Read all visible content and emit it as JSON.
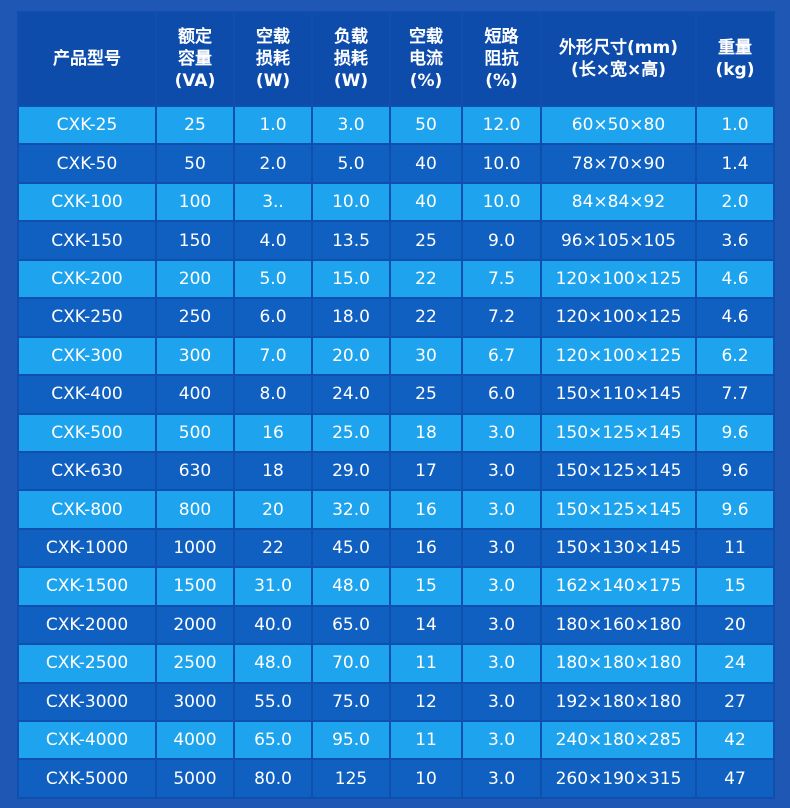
{
  "header": {
    "model": [
      "产品型号"
    ],
    "rated_capacity": [
      "额定",
      "容量",
      "(VA)"
    ],
    "no_load_loss": [
      "空载",
      "损耗",
      "(W)"
    ],
    "load_loss": [
      "负载",
      "损耗",
      "(W)"
    ],
    "no_load_current": [
      "空载",
      "电流",
      "(%)"
    ],
    "short_circuit_impedance": [
      "短路",
      "阻抗",
      "(%)"
    ],
    "dimensions": [
      "外形尺寸(mm)",
      "(长×宽×高)"
    ],
    "weight": [
      "重量",
      "(kg)"
    ]
  },
  "rows": [
    [
      "CXK-25",
      "25",
      "1.0",
      "3.0",
      "50",
      "12.0",
      "60×50×80",
      "1.0"
    ],
    [
      "CXK-50",
      "50",
      "2.0",
      "5.0",
      "40",
      "10.0",
      "78×70×90",
      "1.4"
    ],
    [
      "CXK-100",
      "100",
      "3..",
      "10.0",
      "40",
      "10.0",
      "84×84×92",
      "2.0"
    ],
    [
      "CXK-150",
      "150",
      "4.0",
      "13.5",
      "25",
      "9.0",
      "96×105×105",
      "3.6"
    ],
    [
      "CXK-200",
      "200",
      "5.0",
      "15.0",
      "22",
      "7.5",
      "120×100×125",
      "4.6"
    ],
    [
      "CXK-250",
      "250",
      "6.0",
      "18.0",
      "22",
      "7.2",
      "120×100×125",
      "4.6"
    ],
    [
      "CXK-300",
      "300",
      "7.0",
      "20.0",
      "30",
      "6.7",
      "120×100×125",
      "6.2"
    ],
    [
      "CXK-400",
      "400",
      "8.0",
      "24.0",
      "25",
      "6.0",
      "150×110×145",
      "7.7"
    ],
    [
      "CXK-500",
      "500",
      "16",
      "25.0",
      "18",
      "3.0",
      "150×125×145",
      "9.6"
    ],
    [
      "CXK-630",
      "630",
      "18",
      "29.0",
      "17",
      "3.0",
      "150×125×145",
      "9.6"
    ],
    [
      "CXK-800",
      "800",
      "20",
      "32.0",
      "16",
      "3.0",
      "150×125×145",
      "9.6"
    ],
    [
      "CXK-1000",
      "1000",
      "22",
      "45.0",
      "16",
      "3.0",
      "150×130×145",
      "11"
    ],
    [
      "CXK-1500",
      "1500",
      "31.0",
      "48.0",
      "15",
      "3.0",
      "162×140×175",
      "15"
    ],
    [
      "CXK-2000",
      "2000",
      "40.0",
      "65.0",
      "14",
      "3.0",
      "180×160×180",
      "20"
    ],
    [
      "CXK-2500",
      "2500",
      "48.0",
      "70.0",
      "11",
      "3.0",
      "180×180×180",
      "24"
    ],
    [
      "CXK-3000",
      "3000",
      "55.0",
      "75.0",
      "12",
      "3.0",
      "192×180×180",
      "27"
    ],
    [
      "CXK-4000",
      "4000",
      "65.0",
      "95.0",
      "11",
      "3.0",
      "240×180×285",
      "42"
    ],
    [
      "CXK-5000",
      "5000",
      "80.0",
      "125",
      "10",
      "3.0",
      "260×190×315",
      "47"
    ]
  ],
  "colors": {
    "page_background": "#1e57b4",
    "header_background": "#0d4cab",
    "row_light": "#1ea4ee",
    "row_dark": "#1060c2",
    "text": "#ffffff"
  }
}
